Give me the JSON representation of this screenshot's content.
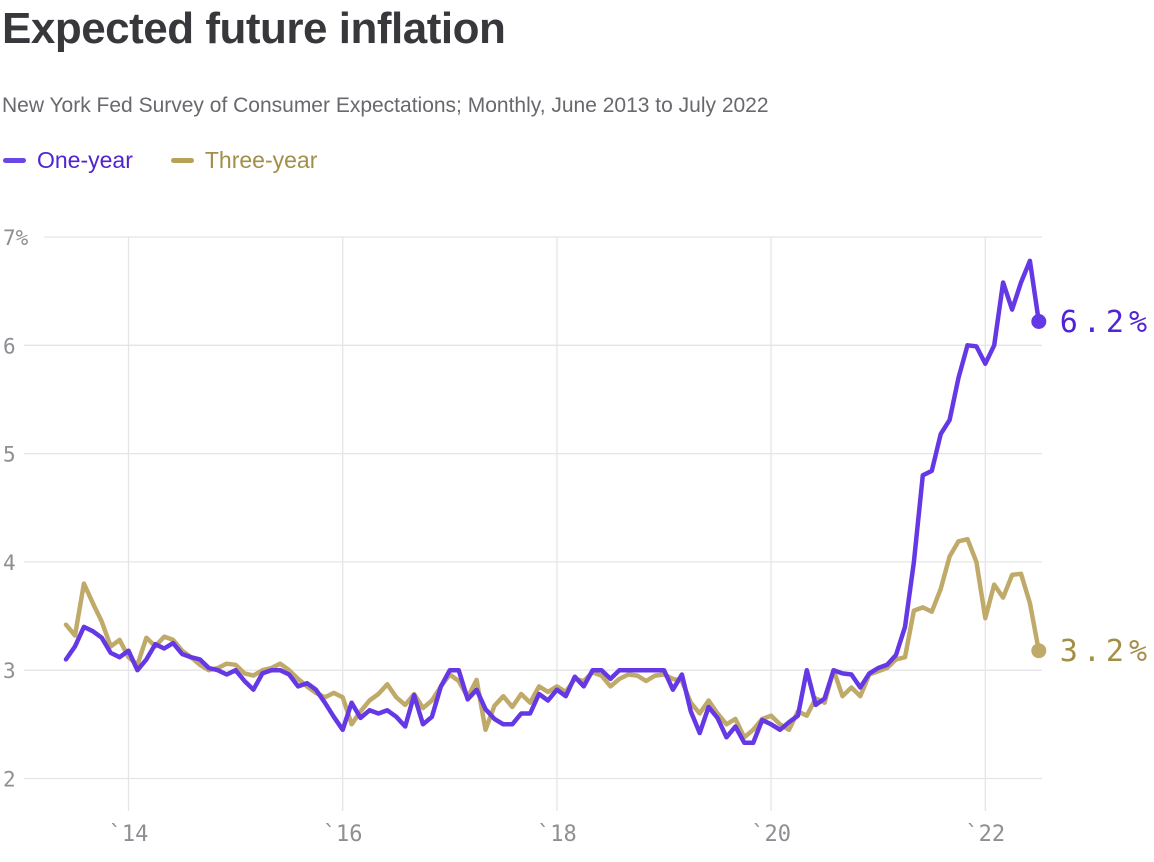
{
  "header": {
    "title": "Expected future inflation",
    "subtitle": "New York Fed Survey of Consumer Expectations; Monthly, June 2013 to July 2022"
  },
  "legend": [
    {
      "label": "One-year",
      "swatch_color": "#6b46e6",
      "text_color": "#5023d3"
    },
    {
      "label": "Three-year",
      "swatch_color": "#b7a258",
      "text_color": "#a38e49"
    }
  ],
  "colors": {
    "title": "#38383c",
    "subtitle": "#68686d",
    "axis_labels": "#8e8e93",
    "gridlines": "#e5e5e7",
    "one_year_line": "#6538e6",
    "three_year_line": "#c0aa6a"
  },
  "chart_data": {
    "type": "line",
    "title": "Expected future inflation",
    "subtitle": "New York Fed Survey of Consumer Expectations; Monthly, June 2013 to July 2022",
    "frequency": "monthly",
    "x_start": "2013-06",
    "x_end": "2022-07",
    "grid": true,
    "legend_position": "top-left",
    "x_axis": {
      "ticks": [
        "`14",
        "`16",
        "`18",
        "`20",
        "`22"
      ],
      "tick_years": [
        2014,
        2016,
        2018,
        2020,
        2022
      ]
    },
    "y_axis": {
      "ticks": [
        "7%",
        "6",
        "5",
        "4",
        "3",
        "2"
      ],
      "tick_values": [
        7,
        6,
        5,
        4,
        3,
        2
      ],
      "range": [
        2,
        7
      ],
      "unit": "%"
    },
    "series": [
      {
        "name": "One-year",
        "color": "#6538e6",
        "label_color": "#5023d3",
        "end_label": "6.2%",
        "end_value": 6.2,
        "values": [
          3.1,
          3.22,
          3.4,
          3.36,
          3.3,
          3.16,
          3.12,
          3.18,
          3.0,
          3.1,
          3.24,
          3.2,
          3.25,
          3.15,
          3.12,
          3.1,
          3.02,
          3.0,
          2.96,
          3.0,
          2.9,
          2.82,
          2.97,
          3.0,
          3.0,
          2.96,
          2.85,
          2.88,
          2.82,
          2.7,
          2.57,
          2.45,
          2.7,
          2.56,
          2.63,
          2.6,
          2.63,
          2.57,
          2.48,
          2.77,
          2.5,
          2.57,
          2.85,
          3.0,
          3.0,
          2.73,
          2.82,
          2.64,
          2.55,
          2.5,
          2.5,
          2.6,
          2.6,
          2.78,
          2.72,
          2.82,
          2.76,
          2.94,
          2.85,
          3.0,
          3.0,
          2.92,
          3.0,
          3.0,
          3.0,
          3.0,
          3.0,
          3.0,
          2.82,
          2.96,
          2.62,
          2.42,
          2.66,
          2.56,
          2.38,
          2.48,
          2.33,
          2.33,
          2.54,
          2.5,
          2.45,
          2.52,
          2.58,
          3.0,
          2.68,
          2.74,
          3.0,
          2.97,
          2.96,
          2.84,
          2.97,
          3.02,
          3.05,
          3.14,
          3.4,
          4.0,
          4.8,
          4.84,
          5.18,
          5.31,
          5.7,
          6.0,
          5.99,
          5.83,
          6.0,
          6.58,
          6.33,
          6.58,
          6.78,
          6.22
        ]
      },
      {
        "name": "Three-year",
        "color": "#c0aa6a",
        "label_color": "#a38e49",
        "end_label": "3.2%",
        "end_value": 3.2,
        "values": [
          3.42,
          3.32,
          3.8,
          3.62,
          3.45,
          3.22,
          3.28,
          3.12,
          3.05,
          3.3,
          3.22,
          3.31,
          3.28,
          3.18,
          3.12,
          3.05,
          3.0,
          3.02,
          3.06,
          3.05,
          2.97,
          2.95,
          3.0,
          3.02,
          3.06,
          3.0,
          2.92,
          2.85,
          2.79,
          2.75,
          2.79,
          2.75,
          2.5,
          2.62,
          2.72,
          2.78,
          2.87,
          2.75,
          2.68,
          2.78,
          2.65,
          2.72,
          2.85,
          2.96,
          2.9,
          2.75,
          2.91,
          2.45,
          2.67,
          2.76,
          2.66,
          2.78,
          2.7,
          2.85,
          2.8,
          2.85,
          2.8,
          2.92,
          2.9,
          2.98,
          2.95,
          2.85,
          2.92,
          2.96,
          2.95,
          2.9,
          2.95,
          2.96,
          2.92,
          2.9,
          2.7,
          2.6,
          2.72,
          2.6,
          2.5,
          2.55,
          2.38,
          2.45,
          2.55,
          2.58,
          2.5,
          2.45,
          2.62,
          2.58,
          2.74,
          2.7,
          3.0,
          2.76,
          2.84,
          2.76,
          2.96,
          2.99,
          3.02,
          3.1,
          3.12,
          3.55,
          3.58,
          3.54,
          3.75,
          4.05,
          4.19,
          4.21,
          4.0,
          3.48,
          3.79,
          3.67,
          3.88,
          3.89,
          3.62,
          3.18
        ]
      }
    ]
  }
}
